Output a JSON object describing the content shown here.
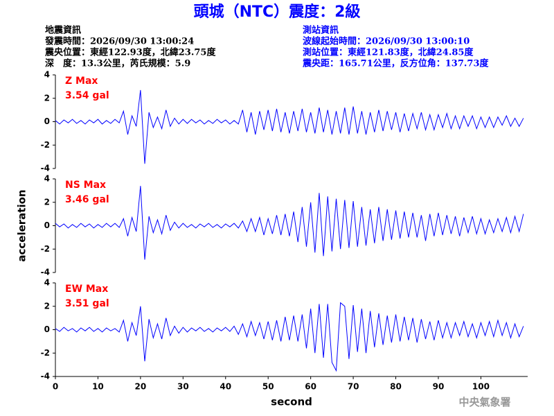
{
  "header": {
    "title": "頭城（NTC）震度：2級",
    "event_info": [
      "地震資訊",
      "發震時間：2026/09/30 13:00:24",
      "震央位置：東經122.93度，北緯23.75度",
      "深　度：13.3公里，芮氏規模：5.9"
    ],
    "station_info": [
      "測站資訊",
      "波線起始時間：2026/09/30 13:00:10",
      "測站位置：東經121.83度，北緯24.85度",
      "震央距：165.71公里，反方位角：137.73度"
    ]
  },
  "chart_data": [
    {
      "type": "line",
      "annotations": [
        "Z Max",
        "3.54 gal"
      ],
      "color": "#0000ff",
      "xlim": [
        0,
        111
      ],
      "ylim": [
        -4,
        4
      ],
      "yticks": [
        -4,
        -2,
        0,
        2,
        4
      ],
      "x": [
        0,
        1,
        2,
        3,
        4,
        5,
        6,
        7,
        8,
        9,
        10,
        11,
        12,
        13,
        14,
        15,
        16,
        17,
        18,
        19,
        20,
        21,
        22,
        23,
        24,
        25,
        26,
        27,
        28,
        29,
        30,
        31,
        32,
        33,
        34,
        35,
        36,
        37,
        38,
        39,
        40,
        41,
        42,
        43,
        44,
        45,
        46,
        47,
        48,
        49,
        50,
        51,
        52,
        53,
        54,
        55,
        56,
        57,
        58,
        59,
        60,
        61,
        62,
        63,
        64,
        65,
        66,
        67,
        68,
        69,
        70,
        71,
        72,
        73,
        74,
        75,
        76,
        77,
        78,
        79,
        80,
        81,
        82,
        83,
        84,
        85,
        86,
        87,
        88,
        89,
        90,
        91,
        92,
        93,
        94,
        95,
        96,
        97,
        98,
        99,
        100,
        101,
        102,
        103,
        104,
        105,
        106,
        107,
        108,
        109,
        110
      ],
      "values": [
        0.1,
        -0.2,
        0.15,
        -0.1,
        0.2,
        -0.15,
        0.1,
        -0.2,
        0.15,
        -0.1,
        0.2,
        -0.2,
        0.1,
        -0.15,
        0.2,
        -0.1,
        0.9,
        -1.1,
        0.5,
        -0.4,
        2.7,
        -3.6,
        0.8,
        -0.5,
        0.4,
        -0.6,
        1.0,
        -0.4,
        0.3,
        -0.2,
        0.2,
        -0.15,
        0.2,
        -0.1,
        0.15,
        -0.2,
        0.1,
        -0.15,
        0.2,
        -0.1,
        0.15,
        -0.2,
        0.1,
        -0.2,
        1.0,
        -0.9,
        0.8,
        -1.1,
        0.9,
        -0.7,
        1.0,
        -0.8,
        1.1,
        -0.9,
        0.8,
        -1.0,
        0.9,
        -0.8,
        1.1,
        -0.9,
        0.8,
        -1.0,
        1.2,
        -0.9,
        1.0,
        -1.1,
        0.9,
        -1.0,
        1.2,
        -1.1,
        1.3,
        -1.0,
        0.9,
        -1.1,
        0.8,
        -0.9,
        1.0,
        -0.8,
        0.9,
        -0.7,
        0.8,
        -0.9,
        0.7,
        -0.8,
        0.7,
        -0.6,
        0.8,
        -0.7,
        0.6,
        -0.7,
        0.6,
        -0.5,
        0.7,
        -0.6,
        0.5,
        -0.6,
        0.5,
        -0.4,
        0.5,
        -0.6,
        0.4,
        -0.5,
        0.4,
        -0.5,
        0.4,
        -0.3,
        0.5,
        -0.4,
        0.3,
        -0.4,
        0.3
      ]
    },
    {
      "type": "line",
      "annotations": [
        "NS Max",
        "3.46 gal"
      ],
      "ylabel": "acceleration",
      "color": "#0000ff",
      "xlim": [
        0,
        111
      ],
      "ylim": [
        -4,
        4
      ],
      "yticks": [
        -4,
        -2,
        0,
        2,
        4
      ],
      "x": [
        0,
        1,
        2,
        3,
        4,
        5,
        6,
        7,
        8,
        9,
        10,
        11,
        12,
        13,
        14,
        15,
        16,
        17,
        18,
        19,
        20,
        21,
        22,
        23,
        24,
        25,
        26,
        27,
        28,
        29,
        30,
        31,
        32,
        33,
        34,
        35,
        36,
        37,
        38,
        39,
        40,
        41,
        42,
        43,
        44,
        45,
        46,
        47,
        48,
        49,
        50,
        51,
        52,
        53,
        54,
        55,
        56,
        57,
        58,
        59,
        60,
        61,
        62,
        63,
        64,
        65,
        66,
        67,
        68,
        69,
        70,
        71,
        72,
        73,
        74,
        75,
        76,
        77,
        78,
        79,
        80,
        81,
        82,
        83,
        84,
        85,
        86,
        87,
        88,
        89,
        90,
        91,
        92,
        93,
        94,
        95,
        96,
        97,
        98,
        99,
        100,
        101,
        102,
        103,
        104,
        105,
        106,
        107,
        108,
        109,
        110
      ],
      "values": [
        0.2,
        -0.1,
        0.15,
        -0.2,
        0.1,
        -0.15,
        0.2,
        -0.1,
        0.15,
        -0.2,
        0.1,
        -0.15,
        0.2,
        -0.1,
        0.2,
        -0.15,
        0.6,
        -0.9,
        0.7,
        -0.5,
        3.4,
        -2.9,
        0.8,
        -0.6,
        0.5,
        -0.7,
        0.9,
        -0.4,
        0.3,
        -0.2,
        0.2,
        -0.15,
        0.1,
        -0.2,
        0.15,
        -0.1,
        0.2,
        -0.15,
        0.1,
        -0.2,
        0.15,
        -0.1,
        0.2,
        -0.2,
        0.4,
        -0.5,
        0.6,
        -0.5,
        0.7,
        -0.8,
        0.6,
        -0.7,
        0.9,
        -0.8,
        1.0,
        -0.9,
        1.2,
        -1.4,
        1.6,
        -1.8,
        2.0,
        -2.3,
        2.8,
        -2.6,
        2.5,
        -2.2,
        2.3,
        -2.0,
        2.2,
        -1.9,
        2.1,
        -1.8,
        1.6,
        -1.7,
        1.4,
        -1.5,
        1.6,
        -1.3,
        1.4,
        -1.2,
        1.3,
        -1.1,
        1.2,
        -1.0,
        1.1,
        -1.0,
        0.9,
        -1.3,
        1.0,
        -0.9,
        1.1,
        -0.8,
        0.9,
        -0.7,
        0.8,
        -0.9,
        0.7,
        -0.6,
        0.8,
        -0.7,
        0.6,
        -0.7,
        0.5,
        -0.6,
        0.6,
        -0.5,
        0.7,
        -0.6,
        0.8,
        -0.5,
        1.0
      ]
    },
    {
      "type": "line",
      "annotations": [
        "EW Max",
        "3.51 gal"
      ],
      "xlabel": "second",
      "color": "#0000ff",
      "xlim": [
        0,
        111
      ],
      "ylim": [
        -4,
        4
      ],
      "yticks": [
        -4,
        -2,
        0,
        2,
        4
      ],
      "xticks": [
        0,
        10,
        20,
        30,
        40,
        50,
        60,
        70,
        80,
        90,
        100
      ],
      "x": [
        0,
        1,
        2,
        3,
        4,
        5,
        6,
        7,
        8,
        9,
        10,
        11,
        12,
        13,
        14,
        15,
        16,
        17,
        18,
        19,
        20,
        21,
        22,
        23,
        24,
        25,
        26,
        27,
        28,
        29,
        30,
        31,
        32,
        33,
        34,
        35,
        36,
        37,
        38,
        39,
        40,
        41,
        42,
        43,
        44,
        45,
        46,
        47,
        48,
        49,
        50,
        51,
        52,
        53,
        54,
        55,
        56,
        57,
        58,
        59,
        60,
        61,
        62,
        63,
        64,
        65,
        66,
        67,
        68,
        69,
        70,
        71,
        72,
        73,
        74,
        75,
        76,
        77,
        78,
        79,
        80,
        81,
        82,
        83,
        84,
        85,
        86,
        87,
        88,
        89,
        90,
        91,
        92,
        93,
        94,
        95,
        96,
        97,
        98,
        99,
        100,
        101,
        102,
        103,
        104,
        105,
        106,
        107,
        108,
        109,
        110
      ],
      "values": [
        0.1,
        -0.15,
        0.2,
        -0.1,
        0.1,
        -0.2,
        0.15,
        -0.1,
        0.2,
        -0.15,
        0.1,
        -0.2,
        0.15,
        -0.1,
        0.1,
        -0.2,
        0.8,
        -1.0,
        0.6,
        -0.5,
        2.0,
        -2.7,
        0.9,
        -0.7,
        0.5,
        -0.8,
        1.0,
        -0.5,
        0.3,
        -0.3,
        0.2,
        -0.2,
        0.15,
        -0.1,
        0.2,
        -0.15,
        0.1,
        -0.2,
        0.15,
        -0.1,
        0.2,
        -0.15,
        0.3,
        -0.4,
        0.5,
        -0.6,
        0.7,
        -0.5,
        0.6,
        -0.8,
        0.7,
        -0.9,
        0.8,
        -1.0,
        1.1,
        -0.9,
        1.2,
        -1.0,
        1.3,
        -1.6,
        1.8,
        -2.0,
        2.2,
        -2.4,
        2.2,
        -2.8,
        -3.5,
        2.3,
        2.0,
        -2.5,
        2.1,
        -1.9,
        1.8,
        -2.0,
        1.6,
        -1.5,
        1.4,
        -1.3,
        1.2,
        -1.1,
        1.3,
        -1.0,
        1.1,
        -0.9,
        1.0,
        -1.1,
        0.9,
        -0.8,
        0.7,
        -0.9,
        0.8,
        -0.7,
        0.6,
        -0.7,
        0.6,
        -0.5,
        0.7,
        -0.6,
        0.5,
        -0.7,
        0.6,
        -0.5,
        0.7,
        -0.6,
        0.8,
        -0.5,
        0.6,
        -0.7,
        0.5,
        -0.6,
        0.3
      ]
    }
  ],
  "footer": "中央氣象署"
}
